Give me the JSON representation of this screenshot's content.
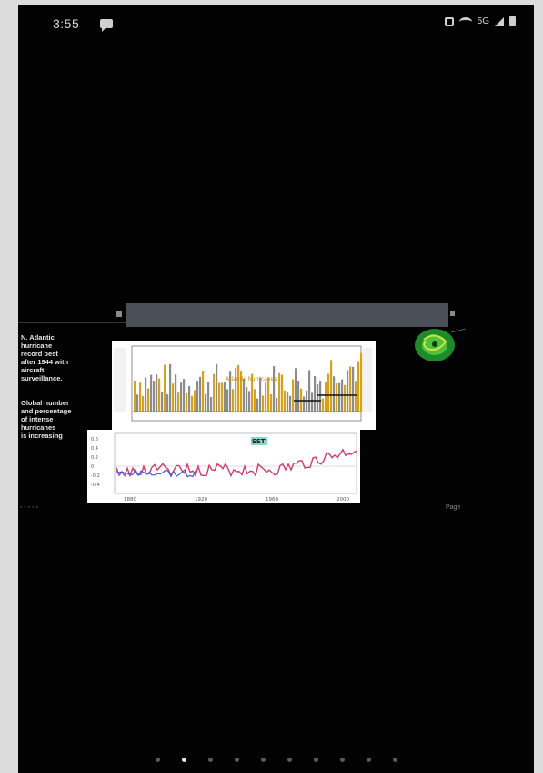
{
  "status_bar": {
    "time": "3:55",
    "network_label": "5G"
  },
  "slide": {
    "side_text_1": "N. Atlantic\nhurricane\nrecord best\nafter 1944 with\naircraft\nsurveillance.",
    "side_text_2": "Global number\nand percentage\nof intense\nhurricanes\nis increasing",
    "top_chart": {
      "legend_text": "Atlantic hurricanes",
      "accent_color": "#d6a21e",
      "trend_color": "#111111"
    },
    "bottom_chart": {
      "label": "SST",
      "x_ticks": [
        "1880",
        "1920",
        "1960",
        "2000"
      ],
      "y_ticks": [
        "0.6",
        "0.4",
        "0.2",
        "0",
        "-0.2",
        "-0.4"
      ],
      "line_color": "#d23a6a",
      "accent_color": "#3a8fd9"
    },
    "caption_right": "Page"
  },
  "pager": {
    "total": 10,
    "active_index": 1
  }
}
